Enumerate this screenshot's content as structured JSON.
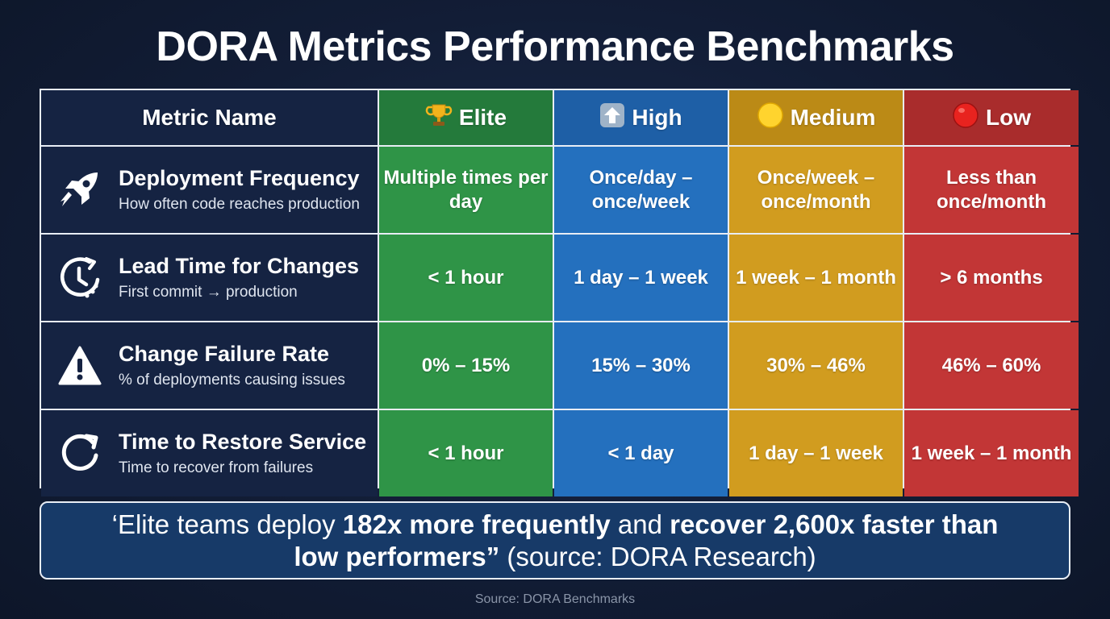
{
  "title": "DORA Metrics Performance Benchmarks",
  "headers": {
    "metric": "Metric Name",
    "elite": "Elite",
    "high": "High",
    "medium": "Medium",
    "low": "Low"
  },
  "header_icons": {
    "elite": "trophy-icon",
    "high": "up-arrow-icon",
    "medium": "yellow-circle-icon",
    "low": "red-circle-icon"
  },
  "colors": {
    "elite": "#2f9447",
    "high": "#2470be",
    "medium": "#d19c1f",
    "low": "#c23636",
    "background": "#121d36"
  },
  "rows": [
    {
      "icon": "rocket-icon",
      "name": "Deployment Frequency",
      "description": "How often code reaches production",
      "elite": "Multiple times per day",
      "high": "Once/day – once/week",
      "medium": "Once/week – once/month",
      "low": "Less than once/month"
    },
    {
      "icon": "clock-icon",
      "name": "Lead Time for Changes",
      "description": "First commit → production",
      "elite": "< 1 hour",
      "high": "1 day – 1 week",
      "medium": "1 week – 1 month",
      "low": "> 6 months"
    },
    {
      "icon": "warning-icon",
      "name": "Change Failure Rate",
      "description": "% of deployments causing issues",
      "elite": "0% – 15%",
      "high": "15% – 30%",
      "medium": "30% – 46%",
      "low": "46% – 60%"
    },
    {
      "icon": "restore-icon",
      "name": "Time to Restore Service",
      "description": "Time to recover from failures",
      "elite": "< 1 hour",
      "high": "< 1 day",
      "medium": "1 day – 1 week",
      "low": "1 week – 1 month"
    }
  ],
  "quote": {
    "part1": "‘Elite teams deploy ",
    "bold1": "182x more frequently",
    "part2": " and ",
    "bold2": "recover 2,600x faster than low performers”",
    "part3": " (source: DORA Research)"
  },
  "source": "Source: DORA Benchmarks"
}
